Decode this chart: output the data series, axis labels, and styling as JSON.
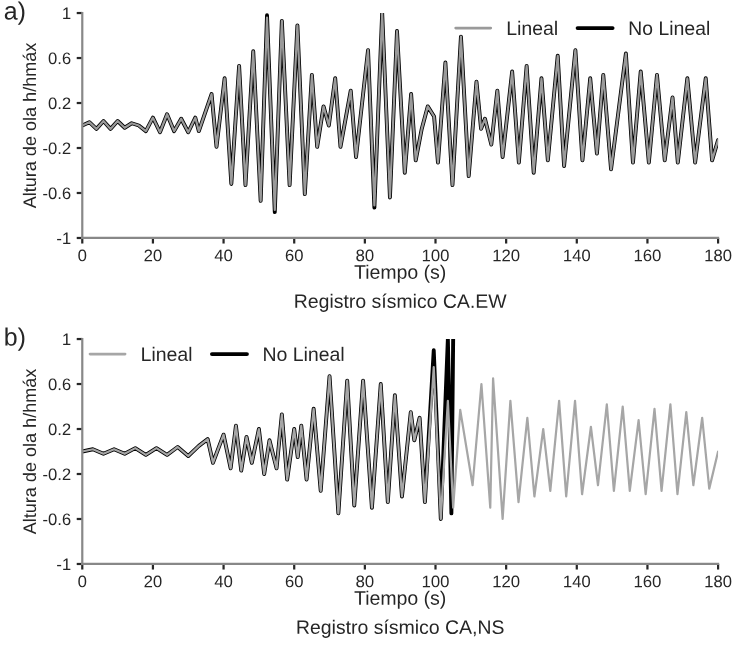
{
  "chart_data": [
    {
      "type": "line",
      "title": "a)",
      "xlabel": "Tiempo (s)",
      "ylabel": "Altura de ola h/hmáx",
      "annotations": [
        "Registro sísmico CA.EW"
      ],
      "xlim": [
        0,
        180
      ],
      "xticks": [
        0,
        20,
        40,
        60,
        80,
        100,
        120,
        140,
        160,
        180
      ],
      "ylim": [
        -1,
        1
      ],
      "yticks": [
        -1,
        -0.6,
        -0.2,
        0.2,
        0.6,
        1
      ],
      "grid": false,
      "legend": "top right",
      "line_style": "solid",
      "marker": "none",
      "series": [
        {
          "name": "Lineal",
          "color": "#9a9a9a",
          "x": [
            0,
            2,
            4,
            6,
            8,
            10,
            12,
            14,
            16,
            18,
            20,
            22,
            24,
            26,
            28,
            30,
            32,
            33,
            36.6,
            38,
            40.3,
            42.2,
            44.4,
            46.2,
            48.4,
            50.5,
            52.3,
            54.5,
            56.5,
            58.7,
            60.9,
            63,
            65,
            66.5,
            68.3,
            69.8,
            71.6,
            73.1,
            76,
            77.5,
            80.9,
            82.7,
            84.9,
            87.1,
            89.1,
            91.3,
            93.1,
            94.4,
            96.1,
            97.8,
            99.6,
            100.7,
            102.8,
            104.8,
            107.2,
            109.4,
            111.6,
            112.9,
            114,
            115.8,
            117.5,
            119,
            121.7,
            123.6,
            125.8,
            127.8,
            130,
            131.8,
            134.6,
            136.4,
            139.6,
            141.6,
            143.8,
            145.7,
            147.5,
            149.7,
            153.9,
            155.9,
            158.1,
            160.4,
            162.7,
            164.9,
            167.1,
            168.6,
            171.3,
            173.5,
            176.5,
            178.3,
            180
          ],
          "values": [
            0,
            0.03,
            -0.03,
            0.04,
            -0.03,
            0.04,
            -0.02,
            0.02,
            0,
            -0.05,
            0.07,
            -0.06,
            0.1,
            -0.05,
            0.06,
            -0.06,
            0.07,
            -0.05,
            0.28,
            -0.19,
            0.42,
            -0.52,
            0.53,
            -0.53,
            0.66,
            -0.67,
            0.96,
            -0.75,
            0.93,
            -0.53,
            0.89,
            -0.61,
            0.45,
            -0.19,
            0.17,
            0,
            0.42,
            -0.19,
            0.31,
            -0.28,
            0.67,
            -0.71,
            1,
            -0.64,
            0.84,
            -0.42,
            0.28,
            -0.31,
            -0.03,
            0.17,
            0.08,
            -0.33,
            0.56,
            -0.53,
            0.79,
            -0.45,
            0.39,
            -0.03,
            0.06,
            -0.17,
            0.31,
            -0.28,
            0.48,
            -0.33,
            0.53,
            -0.42,
            0.42,
            -0.31,
            0.62,
            -0.36,
            0.67,
            -0.31,
            0.42,
            -0.25,
            0.45,
            -0.39,
            0.64,
            -0.33,
            0.48,
            -0.33,
            0.45,
            -0.31,
            0.25,
            -0.33,
            0.42,
            -0.33,
            0.42,
            -0.31,
            -0.13
          ]
        },
        {
          "name": "No Lineal",
          "color": "#000000",
          "x": [
            0,
            2,
            4,
            6,
            8,
            10,
            12,
            14,
            16,
            18,
            20,
            22,
            24,
            26,
            28,
            30,
            32,
            33,
            36.6,
            38,
            40.3,
            42.2,
            44.4,
            46.2,
            48.4,
            50.5,
            52.3,
            54.5,
            56.5,
            58.7,
            60.9,
            63,
            65,
            66.5,
            68.3,
            69.8,
            71.6,
            73.1,
            76,
            77.5,
            80.9,
            82.7,
            84.9,
            87.1,
            89.1,
            91.3,
            93.1,
            94.4,
            96.1,
            97.8,
            99.6,
            100.7,
            102.8,
            104.8,
            107.2,
            109.4,
            111.6,
            112.9,
            114,
            115.8,
            117.5,
            119,
            121.7,
            123.6,
            125.8,
            127.8,
            130,
            131.8,
            134.6,
            136.4,
            139.6,
            141.6,
            143.8,
            145.7,
            147.5,
            149.7,
            153.9,
            155.9,
            158.1,
            160.4,
            162.7,
            164.9,
            167.1,
            168.6,
            171.3,
            173.5,
            176.5,
            178.3,
            180
          ],
          "values": [
            0,
            0.03,
            -0.03,
            0.04,
            -0.03,
            0.04,
            -0.02,
            0.02,
            0,
            -0.05,
            0.07,
            -0.06,
            0.1,
            -0.05,
            0.06,
            -0.06,
            0.07,
            -0.05,
            0.28,
            -0.19,
            0.42,
            -0.52,
            0.53,
            -0.53,
            0.66,
            -0.67,
            0.98,
            -0.77,
            0.93,
            -0.53,
            0.89,
            -0.61,
            0.45,
            -0.19,
            0.17,
            0,
            0.42,
            -0.19,
            0.31,
            -0.28,
            0.67,
            -0.73,
            1,
            -0.64,
            0.84,
            -0.42,
            0.28,
            -0.31,
            -0.03,
            0.17,
            0.08,
            -0.33,
            0.56,
            -0.53,
            0.79,
            -0.45,
            0.39,
            -0.03,
            0.06,
            -0.17,
            0.31,
            -0.28,
            0.48,
            -0.33,
            0.53,
            -0.42,
            0.42,
            -0.31,
            0.62,
            -0.36,
            0.67,
            -0.31,
            0.42,
            -0.25,
            0.45,
            -0.39,
            0.64,
            -0.33,
            0.48,
            -0.33,
            0.45,
            -0.31,
            0.25,
            -0.33,
            0.42,
            -0.33,
            0.42,
            -0.31,
            -0.13
          ]
        }
      ]
    },
    {
      "type": "line",
      "title": "b)",
      "xlabel": "Tiempo (s)",
      "ylabel": "Altura de ola h/hmáx",
      "annotations": [
        "Registro sísmico CA,NS"
      ],
      "xlim": [
        0,
        180
      ],
      "xticks": [
        0,
        20,
        40,
        60,
        80,
        100,
        120,
        140,
        160,
        180
      ],
      "ylim": [
        -1,
        1
      ],
      "yticks": [
        -1,
        -0.6,
        -0.2,
        0.2,
        0.6,
        1
      ],
      "grid": false,
      "legend": "top left",
      "line_style": "solid",
      "marker": "none",
      "series": [
        {
          "name": "Lineal",
          "color": "#a6a6a6",
          "x": [
            0,
            3,
            6,
            9,
            12,
            15,
            18,
            21,
            24,
            27,
            30,
            33,
            35.5,
            37,
            40,
            42,
            43.5,
            45,
            46.5,
            48,
            50,
            51.5,
            53,
            55,
            56.5,
            58,
            60,
            61,
            62,
            63.5,
            65.5,
            67.5,
            70,
            72.5,
            75,
            77,
            79.5,
            82,
            84.5,
            86.5,
            88.5,
            90.5,
            93,
            94,
            95.5,
            97,
            99.5,
            101.5,
            103.5,
            105,
            107,
            110.5,
            113,
            115.5,
            116.3,
            119,
            121.2,
            123.5,
            126,
            128,
            130.5,
            132.5,
            135,
            137,
            139.5,
            141.5,
            144,
            146,
            148.5,
            150.5,
            153,
            155,
            157.5,
            159.5,
            162,
            164,
            166.5,
            168.5,
            171,
            173,
            175.5,
            177.5,
            180
          ],
          "values": [
            0,
            0.02,
            -0.02,
            0.02,
            -0.02,
            0.03,
            -0.03,
            0.03,
            -0.03,
            0.04,
            -0.04,
            0.05,
            0.11,
            -0.1,
            0.15,
            -0.15,
            0.23,
            -0.17,
            0.13,
            -0.1,
            0.2,
            -0.2,
            0.1,
            -0.15,
            0.33,
            -0.25,
            0.2,
            -0.05,
            0.23,
            -0.25,
            0.38,
            -0.35,
            0.67,
            -0.55,
            0.63,
            -0.48,
            0.63,
            -0.5,
            0.6,
            -0.45,
            0.5,
            -0.4,
            0.35,
            0.1,
            0.3,
            -0.45,
            0.75,
            -0.6,
            0.45,
            -0.5,
            0.37,
            -0.3,
            0.6,
            -0.5,
            0.65,
            -0.6,
            0.45,
            -0.45,
            0.3,
            -0.4,
            0.2,
            -0.35,
            0.45,
            -0.4,
            0.45,
            -0.38,
            0.22,
            -0.3,
            0.42,
            -0.35,
            0.4,
            -0.35,
            0.28,
            -0.38,
            0.38,
            -0.35,
            0.42,
            -0.38,
            0.35,
            -0.3,
            0.3,
            -0.33,
            0
          ]
        },
        {
          "name": "No Lineal",
          "color": "#000000",
          "x": [
            0,
            3,
            6,
            9,
            12,
            15,
            18,
            21,
            24,
            27,
            30,
            33,
            35.5,
            37,
            40,
            42,
            43.5,
            45,
            46.5,
            48,
            50,
            51.5,
            53,
            55,
            56.5,
            58,
            60,
            61,
            62,
            63.5,
            65.5,
            67.5,
            70,
            72.5,
            75,
            77,
            79.5,
            82,
            84.5,
            86.5,
            88.5,
            90.5,
            93,
            94,
            95.5,
            97,
            99.5,
            101.5,
            103.5,
            104.5,
            105
          ],
          "values": [
            0,
            0.02,
            -0.02,
            0.02,
            -0.02,
            0.03,
            -0.03,
            0.03,
            -0.03,
            0.04,
            -0.04,
            0.05,
            0.11,
            -0.1,
            0.15,
            -0.15,
            0.23,
            -0.17,
            0.13,
            -0.1,
            0.2,
            -0.2,
            0.1,
            -0.15,
            0.33,
            -0.25,
            0.2,
            -0.05,
            0.23,
            -0.25,
            0.38,
            -0.35,
            0.67,
            -0.55,
            0.63,
            -0.48,
            0.63,
            -0.5,
            0.6,
            -0.45,
            0.5,
            -0.4,
            0.35,
            0.1,
            0.3,
            -0.45,
            0.9,
            -0.6,
            1,
            -0.55,
            1
          ]
        }
      ]
    }
  ]
}
